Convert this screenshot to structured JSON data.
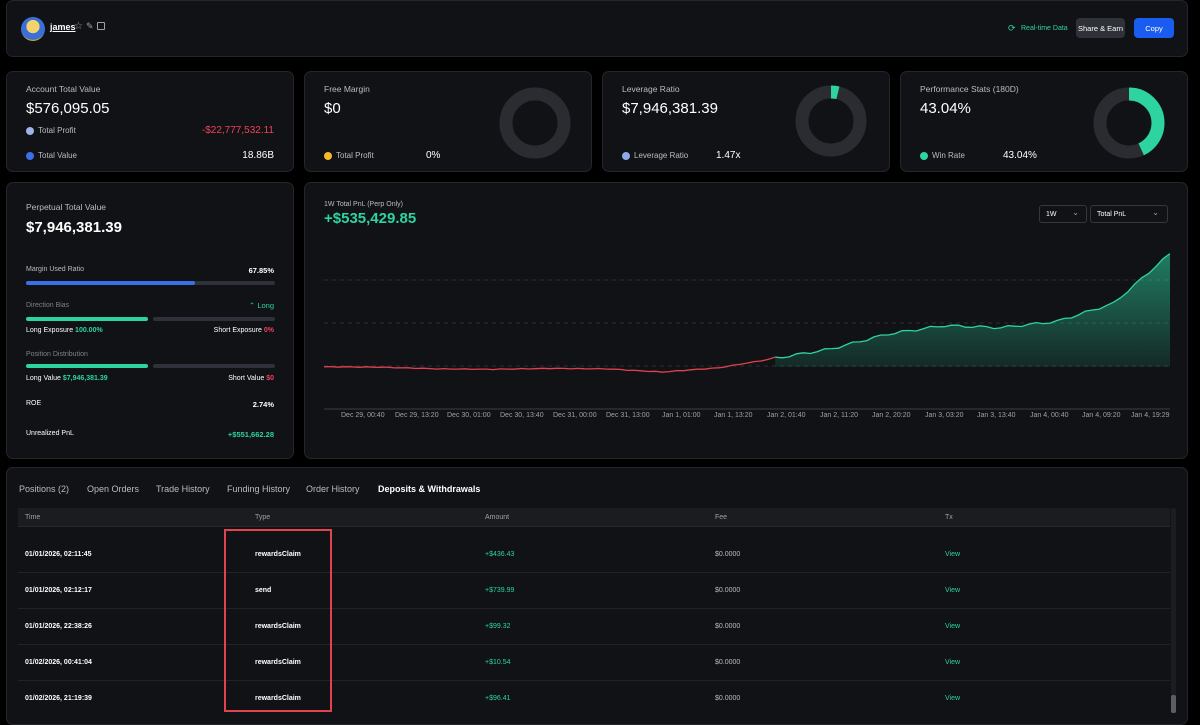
{
  "header": {
    "username": "james",
    "realtime_label": "Real-time Data",
    "share_label": "Share & Earn",
    "copy_label": "Copy"
  },
  "stats": {
    "account": {
      "title": "Account Total Value",
      "value": "$576,095.05",
      "profit_label": "Total Profit",
      "profit_value": "-$22,777,532.11",
      "total_label": "Total Value",
      "total_value": "18.86B"
    },
    "margin": {
      "title": "Free Margin",
      "value": "$0",
      "profit_label": "Total Profit",
      "profit_value": "0%"
    },
    "leverage": {
      "title": "Leverage Ratio",
      "value": "$7,946,381.39",
      "ratio_label": "Leverage Ratio",
      "ratio_value": "1.47x"
    },
    "performance": {
      "title": "Performance Stats (180D)",
      "value": "43.04%",
      "winrate_label": "Win Rate",
      "winrate_value": "43.04%"
    }
  },
  "perp": {
    "title": "Perpetual Total Value",
    "value": "$7,946,381.39",
    "margin_label": "Margin Used Ratio",
    "margin_value": "67.85%",
    "margin_fraction": 0.6785,
    "direction_label": "Direction Bias",
    "direction_value": "Long",
    "long_exposure_label": "Long Exposure",
    "long_exposure_value": "100.00%",
    "short_exposure_label": "Short Exposure",
    "short_exposure_value": "0%",
    "distribution_label": "Position Distribution",
    "long_value_label": "Long Value",
    "long_value": "$7,946,381.39",
    "short_value_label": "Short Value",
    "short_value": "$0",
    "roe_label": "ROE",
    "roe_value": "2.74%",
    "unrealized_label": "Unrealized PnL",
    "unrealized_value": "+$551,662.28"
  },
  "pnl_chart": {
    "subtitle": "1W Total PnL (Perp Only)",
    "value": "+$535,429.85",
    "period_select": "1W",
    "metric_select": "Total PnL",
    "x_labels": [
      "Dec 29, 00:40",
      "Dec 29, 13:20",
      "Dec 30, 01:00",
      "Dec 30, 13:40",
      "Dec 31, 00:00",
      "Dec 31, 13:00",
      "Jan 1, 01:00",
      "Jan 1, 13:20",
      "Jan 2, 01:40",
      "Jan 2, 11:20",
      "Jan 2, 20:20",
      "Jan 3, 03:20",
      "Jan 3, 13:40",
      "Jan 4, 00:40",
      "Jan 4, 09:20",
      "Jan 4, 19:29"
    ]
  },
  "chart_data": {
    "type": "area",
    "subtitle": "1W Total PnL (Perp Only)",
    "x": [
      "Dec 29, 00:40",
      "Dec 29, 13:20",
      "Dec 30, 01:00",
      "Dec 30, 13:40",
      "Dec 31, 00:00",
      "Dec 31, 13:00",
      "Jan 1, 01:00",
      "Jan 1, 13:20",
      "Jan 2, 01:40",
      "Jan 2, 11:20",
      "Jan 2, 20:20",
      "Jan 3, 03:20",
      "Jan 3, 13:40",
      "Jan 4, 00:40",
      "Jan 4, 09:20",
      "Jan 4, 19:29"
    ],
    "values": [
      0,
      -2000,
      -10000,
      -12000,
      -8000,
      -10000,
      -25000,
      -5000,
      40000,
      85000,
      155000,
      195000,
      185000,
      215000,
      300000,
      535429.85
    ],
    "ylim": [
      -200000,
      600000
    ],
    "positive_color": "#2dd4a0",
    "negative_color": "#e0404f",
    "grid": true
  },
  "tabs": [
    {
      "label": "Positions (2)"
    },
    {
      "label": "Open Orders"
    },
    {
      "label": "Trade History"
    },
    {
      "label": "Funding History"
    },
    {
      "label": "Order History"
    },
    {
      "label": "Deposits & Withdrawals"
    }
  ],
  "table": {
    "headers": [
      "Time",
      "Type",
      "Amount",
      "Fee",
      "Tx"
    ],
    "rows": [
      {
        "time": "01/01/2026, 02:11:45",
        "type": "rewardsClaim",
        "amount": "+$436.43",
        "fee": "$0.0000",
        "tx": "View"
      },
      {
        "time": "01/01/2026, 02:12:17",
        "type": "send",
        "amount": "+$739.99",
        "fee": "$0.0000",
        "tx": "View"
      },
      {
        "time": "01/01/2026, 22:38:26",
        "type": "rewardsClaim",
        "amount": "+$99.32",
        "fee": "$0.0000",
        "tx": "View"
      },
      {
        "time": "01/02/2026, 00:41:04",
        "type": "rewardsClaim",
        "amount": "+$10.54",
        "fee": "$0.0000",
        "tx": "View"
      },
      {
        "time": "01/02/2026, 21:19:39",
        "type": "rewardsClaim",
        "amount": "+$96.41",
        "fee": "$0.0000",
        "tx": "View"
      }
    ]
  },
  "colors": {
    "accent_blue": "#1a5cf0",
    "green": "#2dd4a0",
    "red": "#f0405a",
    "highlight_box": "#e0454f"
  },
  "icons": [
    "avatar",
    "star-icon",
    "edit-icon",
    "copy-icon",
    "refresh-icon",
    "chevron-down-icon",
    "chevron-up-icon"
  ]
}
